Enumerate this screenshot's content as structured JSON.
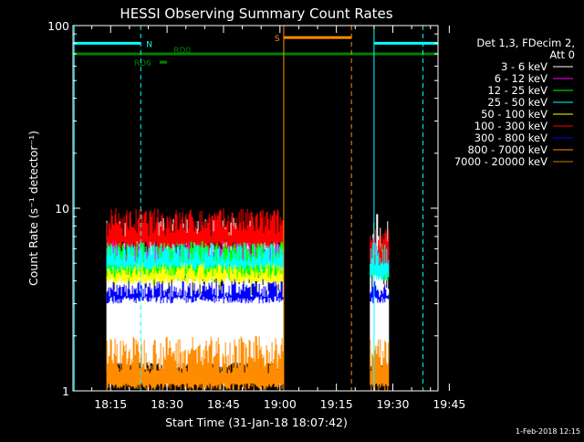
{
  "chart_data": {
    "type": "line",
    "title": "HESSI Observing Summary Count Rates",
    "xlabel": "Start Time (31-Jan-18 18:07:42)",
    "ylabel": "Count Rate (s⁻¹ detector⁻¹)",
    "y_scale": "log",
    "ylim": [
      1,
      100
    ],
    "xlim_minutes": [
      5,
      102
    ],
    "x_tick_labels": [
      "18:15",
      "18:30",
      "18:45",
      "19:00",
      "19:15",
      "19:30",
      "19:45"
    ],
    "x_tick_minutes": [
      15,
      30,
      45,
      60,
      75,
      90,
      105
    ],
    "y_tick_labels": [
      "1",
      "10",
      "100"
    ],
    "y_tick_values": [
      1,
      10,
      100
    ],
    "legend": {
      "placement": "right",
      "header": [
        "Det 1,3, FDecim 2,",
        "Att 0"
      ],
      "entries": [
        {
          "label": "3 - 6 keV",
          "color": "#ffffff"
        },
        {
          "label": "6 - 12 keV",
          "color": "#ff00ff"
        },
        {
          "label": "12 - 25 keV",
          "color": "#00ff00"
        },
        {
          "label": "25 - 50 keV",
          "color": "#00ffff"
        },
        {
          "label": "50 - 100 keV",
          "color": "#ffff00"
        },
        {
          "label": "100 - 300 keV",
          "color": "#ff0000"
        },
        {
          "label": "300 - 800 keV",
          "color": "#0000ff"
        },
        {
          "label": "800 - 7000 keV",
          "color": "#ff8c00"
        },
        {
          "label": "7000 - 20000 keV",
          "color": "#c08000"
        }
      ]
    },
    "series": [
      {
        "name": "3 - 6 keV",
        "color": "#ffffff",
        "segments": [
          {
            "x": [
              14,
              61
            ],
            "y_low": 1.3,
            "y_high": 9.0
          },
          {
            "x": [
              84,
              89
            ],
            "y_low": 1.3,
            "y_high": 9.5
          }
        ]
      },
      {
        "name": "6 - 12 keV",
        "color": "#ff00ff",
        "segments": [
          {
            "x": [
              14,
              61
            ],
            "y_low": 4.5,
            "y_high": 7.0
          },
          {
            "x": [
              84,
              89
            ],
            "y_low": 4.5,
            "y_high": 7.0
          }
        ]
      },
      {
        "name": "12 - 25 keV",
        "color": "#00ff00",
        "segments": [
          {
            "x": [
              14,
              61
            ],
            "y_low": 4.0,
            "y_high": 7.5
          },
          {
            "x": [
              84,
              89
            ],
            "y_low": 4.0,
            "y_high": 6.5
          }
        ]
      },
      {
        "name": "25 - 50 keV",
        "color": "#00ffff",
        "segments": [
          {
            "x": [
              14,
              61
            ],
            "y_low": 4.5,
            "y_high": 6.5
          },
          {
            "x": [
              84,
              89
            ],
            "y_low": 4.0,
            "y_high": 6.5
          }
        ]
      },
      {
        "name": "50 - 100 keV",
        "color": "#ffff00",
        "segments": [
          {
            "x": [
              14,
              61
            ],
            "y_low": 3.8,
            "y_high": 5.0
          }
        ]
      },
      {
        "name": "100 - 300 keV",
        "color": "#ff0000",
        "segments": [
          {
            "x": [
              14,
              61
            ],
            "y_low": 6.0,
            "y_high": 10.0
          },
          {
            "x": [
              84,
              89
            ],
            "y_low": 4.5,
            "y_high": 8.0
          }
        ]
      },
      {
        "name": "300 - 800 keV",
        "color": "#0000ff",
        "segments": [
          {
            "x": [
              14,
              61
            ],
            "y_low": 3.0,
            "y_high": 4.0
          },
          {
            "x": [
              84,
              89
            ],
            "y_low": 3.0,
            "y_high": 4.0
          }
        ]
      },
      {
        "name": "800 - 7000 keV",
        "color": "#ff8c00",
        "segments": [
          {
            "x": [
              14,
              61
            ],
            "y_low": 1.0,
            "y_high": 2.0
          },
          {
            "x": [
              84,
              89
            ],
            "y_low": 1.0,
            "y_high": 2.0
          }
        ]
      },
      {
        "name": "7000 - 20000 keV",
        "color": "#c08000",
        "segments": []
      }
    ],
    "flags": [
      {
        "label": "N",
        "color": "#00ffff",
        "x": [
          5,
          23
        ],
        "y": 80
      },
      {
        "label": "",
        "color": "#00ffff",
        "x": [
          85,
          102
        ],
        "y": 80
      },
      {
        "label": "S",
        "color": "#ff8c00",
        "x": [
          61,
          79
        ],
        "y": 86
      },
      {
        "label": "",
        "color": "#008000",
        "x": [
          5,
          102
        ],
        "y": 70
      },
      {
        "label": "RD6",
        "color": "#008000",
        "x": [
          28,
          30
        ],
        "y": 63
      },
      {
        "label": "RD0",
        "color": "#008000",
        "x": [
          30,
          31
        ],
        "y": 70
      }
    ],
    "vertical_lines": [
      {
        "x": 5.3,
        "color": "#00ffff",
        "style": "solid"
      },
      {
        "x": 23,
        "color": "#00ffff",
        "style": "dashed"
      },
      {
        "x": 61,
        "color": "#ff8c00",
        "style": "solid"
      },
      {
        "x": 79,
        "color": "#ff8c00",
        "style": "dashed"
      },
      {
        "x": 85,
        "color": "#00ffff",
        "style": "solid"
      },
      {
        "x": 98,
        "color": "#00ffff",
        "style": "dashed"
      }
    ]
  },
  "footer_timestamp": "1-Feb-2018 12:15"
}
